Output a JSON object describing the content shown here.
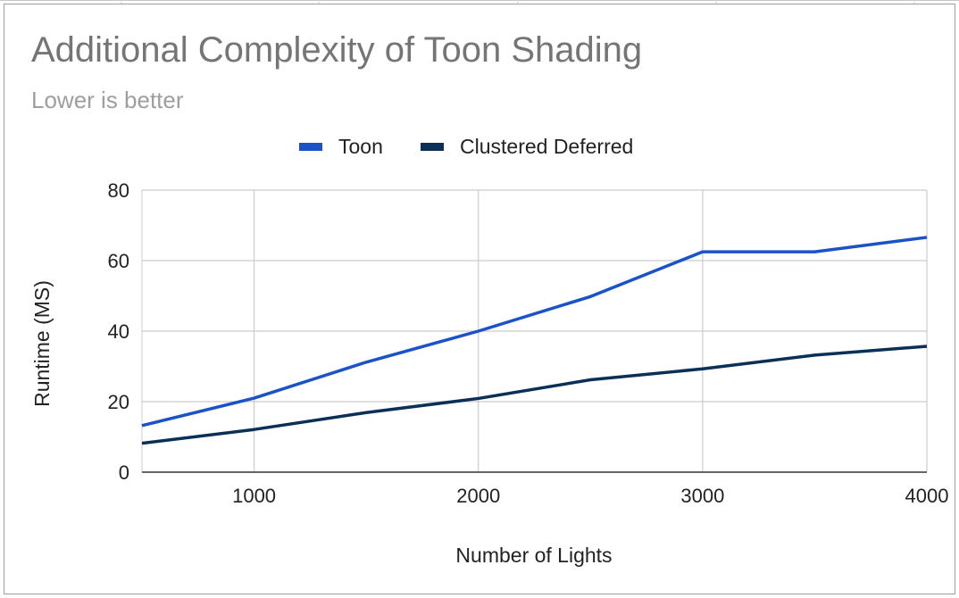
{
  "chart_data": {
    "type": "line",
    "title": "Additional Complexity of Toon Shading",
    "subtitle": "Lower is better",
    "xlabel": "Number of Lights",
    "ylabel": "Runtime (MS)",
    "x": [
      500,
      1000,
      1500,
      2000,
      2500,
      3000,
      3500,
      4000
    ],
    "xlim": [
      500,
      4000
    ],
    "ylim": [
      0,
      80
    ],
    "xticks": [
      1000,
      2000,
      3000,
      4000
    ],
    "yticks": [
      0,
      20,
      40,
      60,
      80
    ],
    "xtick_labels": [
      "1000",
      "2000",
      "3000",
      "4000"
    ],
    "ytick_labels": [
      "0",
      "20",
      "40",
      "60",
      "80"
    ],
    "grid": true,
    "legend_position": "top",
    "series": [
      {
        "name": "Toon",
        "color": "#1a53c8",
        "values": [
          13.2,
          21,
          31.2,
          40,
          49.8,
          62.5,
          62.5,
          66.6
        ]
      },
      {
        "name": "Clustered Deferred",
        "color": "#0b3058",
        "values": [
          8.2,
          12.1,
          16.9,
          20.9,
          26.2,
          29.3,
          33.2,
          35.7
        ]
      }
    ]
  }
}
